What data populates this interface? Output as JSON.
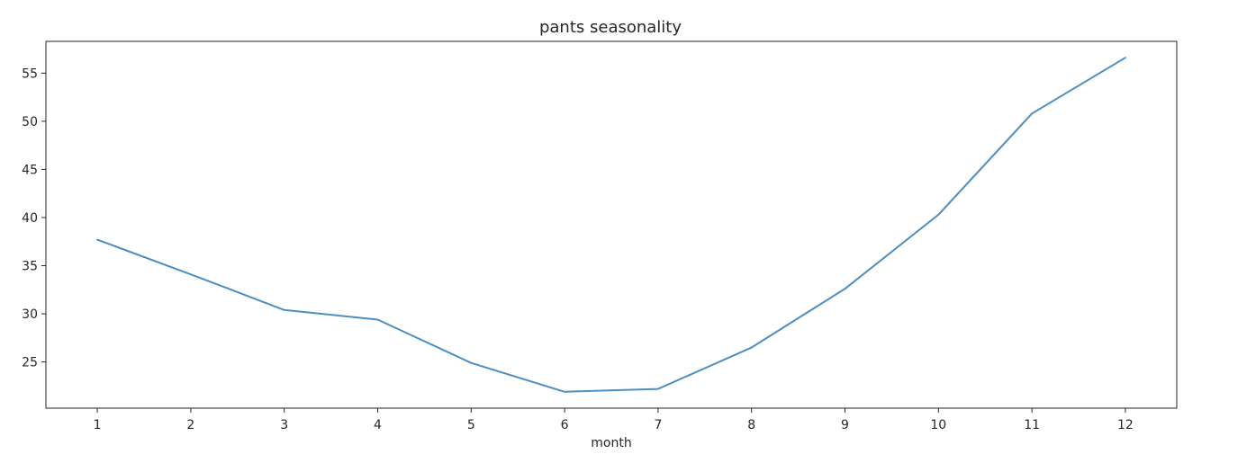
{
  "chart_data": {
    "type": "line",
    "title": "pants seasonality",
    "xlabel": "month",
    "ylabel": "",
    "x": [
      1,
      2,
      3,
      4,
      5,
      6,
      7,
      8,
      9,
      10,
      11,
      12
    ],
    "series": [
      {
        "values": [
          37.7,
          34.1,
          30.4,
          29.4,
          24.9,
          21.9,
          22.2,
          26.5,
          32.6,
          40.3,
          50.8,
          56.6
        ]
      }
    ],
    "xticks": [
      "1",
      "2",
      "3",
      "4",
      "5",
      "6",
      "7",
      "8",
      "9",
      "10",
      "11",
      "12"
    ],
    "yticks": [
      25,
      30,
      35,
      40,
      45,
      50,
      55
    ],
    "xlim": [
      0.45,
      12.55
    ],
    "ylim": [
      20.2,
      58.3
    ],
    "grid": false,
    "line_color": "#4c8ebf"
  }
}
